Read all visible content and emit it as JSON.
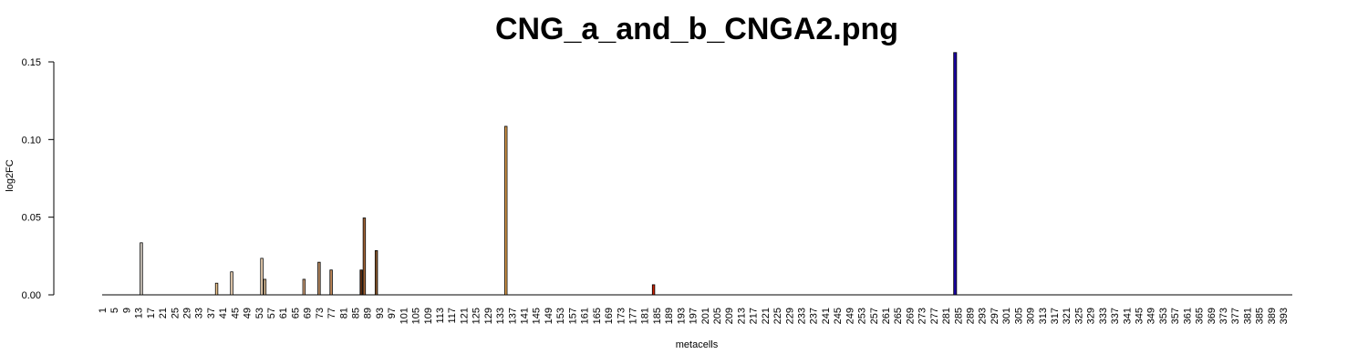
{
  "chart_data": {
    "type": "bar",
    "title": "CNG_a_and_b_CNGA2.png",
    "xlabel": "metacells",
    "ylabel": "log2FC",
    "ylim": [
      0,
      0.15
    ],
    "xlim": [
      1,
      396
    ],
    "y_ticks": [
      "0.00",
      "0.05",
      "0.10",
      "0.15"
    ],
    "y_tick_values": [
      0,
      0.05,
      0.1,
      0.15
    ],
    "x_tick_start": 1,
    "x_tick_step": 4,
    "x_tick_end": 393,
    "grid": false,
    "legend": "none",
    "bars": [
      {
        "x": 14,
        "value": 0.0335,
        "color": "#d3cbc0"
      },
      {
        "x": 39,
        "value": 0.0075,
        "color": "#f0c890"
      },
      {
        "x": 44,
        "value": 0.0148,
        "color": "#f3d8b8"
      },
      {
        "x": 54,
        "value": 0.0235,
        "color": "#f3d8b8"
      },
      {
        "x": 55,
        "value": 0.01,
        "color": "#e7c8a0"
      },
      {
        "x": 68,
        "value": 0.01,
        "color": "#d8a880"
      },
      {
        "x": 73,
        "value": 0.021,
        "color": "#b88a60"
      },
      {
        "x": 77,
        "value": 0.016,
        "color": "#c08858"
      },
      {
        "x": 87,
        "value": 0.016,
        "color": "#5a2c10"
      },
      {
        "x": 88,
        "value": 0.0495,
        "color": "#a86838"
      },
      {
        "x": 92,
        "value": 0.0285,
        "color": "#8a5a30"
      },
      {
        "x": 135,
        "value": 0.1085,
        "color": "#e0a050"
      },
      {
        "x": 184,
        "value": 0.0065,
        "color": "#cc2200"
      },
      {
        "x": 284,
        "value": 0.156,
        "color": "#1a00a0"
      }
    ]
  }
}
